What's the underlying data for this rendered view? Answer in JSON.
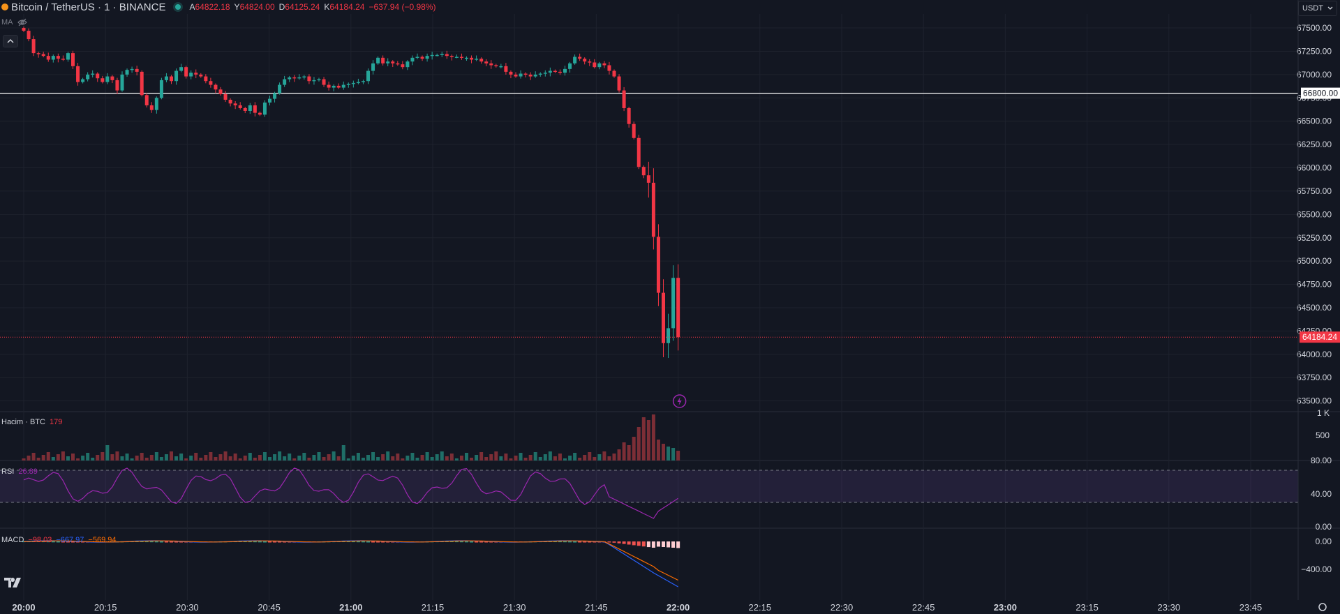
{
  "header": {
    "title": "Bitcoin / TetherUS · 1 · BINANCE",
    "ohlc": [
      {
        "k": "A",
        "v": "64822.18"
      },
      {
        "k": "Y",
        "v": "64824.00"
      },
      {
        "k": "D",
        "v": "64125.24"
      },
      {
        "k": "K",
        "v": "64184.24"
      }
    ],
    "change": "−637.94 (−0.98%)",
    "currency_button": "USDT",
    "ma_label": "MA",
    "collapse_icon": "chevron-up-icon",
    "eye_icon": "eye-off-icon"
  },
  "price_axis": {
    "ticks": [
      "67500.00",
      "67250.00",
      "67000.00",
      "66750.00",
      "66500.00",
      "66250.00",
      "66000.00",
      "65750.00",
      "65500.00",
      "65250.00",
      "65000.00",
      "64750.00",
      "64500.00",
      "64250.00",
      "64000.00",
      "63750.00",
      "63500.00"
    ],
    "hline_label": "66800.00",
    "last_price_label": "64184.24"
  },
  "volume_pane": {
    "label": "Hacim · BTC",
    "value": "179",
    "ticks": [
      "1 K",
      "500"
    ]
  },
  "rsi_pane": {
    "label": "RSI",
    "value": "26.89",
    "ticks": [
      "80.00",
      "40.00",
      "0.00"
    ]
  },
  "macd_pane": {
    "label": "MACD",
    "v1": "−98.03",
    "v2": "−667.97",
    "v3": "−569.94",
    "ticks": [
      "0.00",
      "−400.00"
    ]
  },
  "time_axis": [
    "20:00",
    "20:15",
    "20:30",
    "20:45",
    "21:00",
    "21:15",
    "21:30",
    "21:45",
    "22:00",
    "22:15",
    "22:30",
    "22:45",
    "23:00",
    "23:15",
    "23:30",
    "23:45"
  ],
  "colors": {
    "up": "#26a69a",
    "down": "#f23645",
    "bg": "#131722",
    "rsi": "#9c27b0",
    "macd": "#2962ff",
    "signal": "#ff6d00"
  },
  "chart_data": {
    "type": "candlestick",
    "title": "Bitcoin / TetherUS · 1 · BINANCE",
    "ylim": [
      63400,
      67650
    ],
    "horizontal_line": 66800,
    "last_price": 64184.24,
    "candles_close": [
      67470,
      67380,
      67230,
      67220,
      67200,
      67160,
      67200,
      67170,
      67160,
      67230,
      67090,
      66920,
      66950,
      67000,
      67010,
      66960,
      66920,
      66980,
      66940,
      66830,
      67000,
      67050,
      67060,
      67030,
      66780,
      66670,
      66620,
      66750,
      66940,
      66980,
      66930,
      67040,
      67080,
      66980,
      67020,
      67000,
      66980,
      66930,
      66890,
      66840,
      66790,
      66730,
      66690,
      66670,
      66640,
      66610,
      66670,
      66590,
      66570,
      66700,
      66740,
      66800,
      66890,
      66950,
      66970,
      66960,
      66970,
      66980,
      66930,
      66940,
      66950,
      66890,
      66860,
      66880,
      66860,
      66890,
      66900,
      66910,
      66920,
      66930,
      67040,
      67120,
      67180,
      67120,
      67140,
      67120,
      67110,
      67080,
      67140,
      67180,
      67190,
      67170,
      67200,
      67210,
      67210,
      67220,
      67200,
      67190,
      67190,
      67180,
      67180,
      67160,
      67170,
      67140,
      67120,
      67100,
      67090,
      67090,
      67030,
      67000,
      66980,
      67010,
      67000,
      66980,
      67000,
      67010,
      67020,
      67040,
      67030,
      67020,
      67060,
      67120,
      67190,
      67170,
      67140,
      67130,
      67080,
      67120,
      67100,
      67040,
      66980,
      66830,
      66640,
      66470,
      66320,
      66010,
      65920,
      65840,
      65260,
      64660,
      64120,
      64280,
      64820,
      64184
    ],
    "volume_max": "1 K",
    "rsi_band": [
      30,
      70
    ],
    "macd_values": {
      "macd": -667.97,
      "signal": -569.94,
      "histogram": -98.03
    }
  }
}
